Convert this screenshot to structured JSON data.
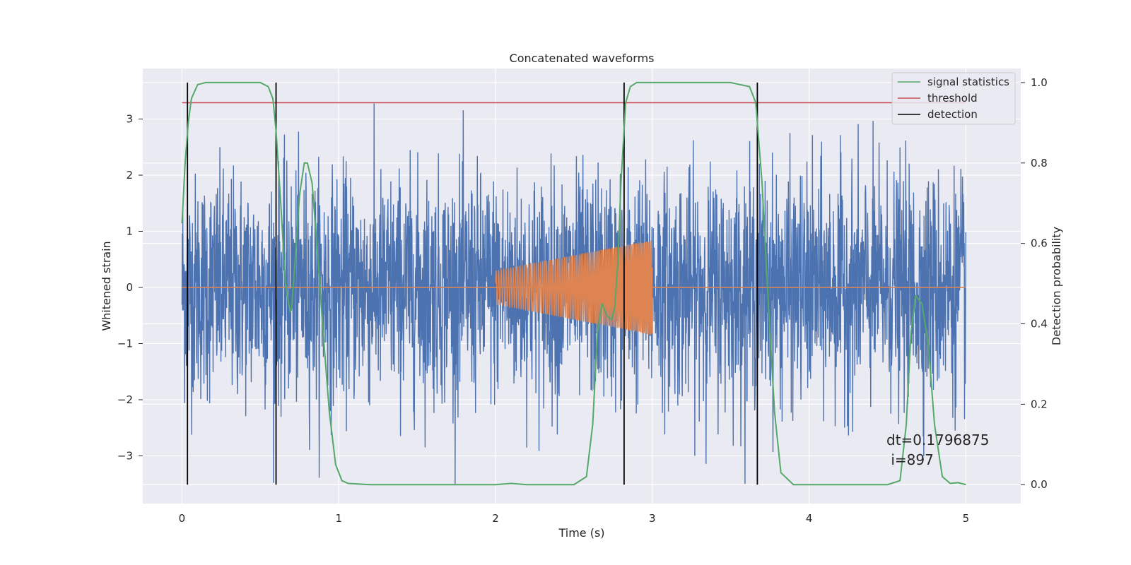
{
  "chart_data": {
    "type": "line",
    "title": "Concatenated waveforms",
    "xlabel": "Time (s)",
    "ylabel": "Whitened strain",
    "y2label": "Detection probability",
    "xlim": [
      -0.25,
      5.35
    ],
    "ylim": [
      -3.85,
      3.9
    ],
    "y2lim": [
      -0.047,
      1.035
    ],
    "grid": true,
    "xticks": [
      0,
      1,
      2,
      3,
      4,
      5
    ],
    "xtick_labels": [
      "0",
      "1",
      "2",
      "3",
      "4",
      "5"
    ],
    "yticks": [
      -3,
      -2,
      -1,
      0,
      1,
      2,
      3
    ],
    "ytick_labels": [
      "−3",
      "−2",
      "−1",
      "0",
      "1",
      "2",
      "3"
    ],
    "y2ticks": [
      0.0,
      0.2,
      0.4,
      0.6,
      0.8,
      1.0
    ],
    "y2tick_labels": [
      "0.0",
      "0.2",
      "0.4",
      "0.6",
      "0.8",
      "1.0"
    ],
    "legend_position": "top-right",
    "series": [
      {
        "name": "",
        "kind": "noise",
        "color": "#4c72b0",
        "x_range": [
          0,
          5
        ],
        "typical_amplitude": 1.0,
        "peak_amplitude": 3.5
      },
      {
        "name": "",
        "kind": "chirp",
        "color": "#dd8452",
        "flat_x": [
          0,
          5
        ],
        "flat_y": 0,
        "chirp_x": [
          2.0,
          3.0
        ],
        "amplitude_start": 0.3,
        "amplitude_end": 0.85,
        "axis": "left"
      },
      {
        "name": "signal statistics",
        "color": "#55a868",
        "axis": "right",
        "x": [
          0.0,
          0.02,
          0.04,
          0.06,
          0.1,
          0.15,
          0.3,
          0.5,
          0.55,
          0.58,
          0.6,
          0.63,
          0.66,
          0.69,
          0.7,
          0.72,
          0.75,
          0.78,
          0.8,
          0.83,
          0.86,
          0.9,
          0.94,
          0.98,
          1.02,
          1.06,
          1.2,
          1.5,
          2.0,
          2.1,
          2.2,
          2.5,
          2.58,
          2.62,
          2.65,
          2.68,
          2.71,
          2.74,
          2.76,
          2.78,
          2.8,
          2.83,
          2.86,
          2.9,
          3.0,
          3.5,
          3.62,
          3.66,
          3.7,
          3.74,
          3.78,
          3.82,
          3.9,
          4.2,
          4.5,
          4.58,
          4.62,
          4.65,
          4.68,
          4.72,
          4.76,
          4.8,
          4.85,
          4.9,
          4.95,
          5.0
        ],
        "y": [
          0.65,
          0.8,
          0.9,
          0.96,
          0.995,
          1.0,
          1.0,
          1.0,
          0.99,
          0.96,
          0.88,
          0.7,
          0.5,
          0.43,
          0.44,
          0.55,
          0.72,
          0.8,
          0.8,
          0.75,
          0.6,
          0.38,
          0.18,
          0.05,
          0.01,
          0.003,
          0.0,
          0.0,
          0.0,
          0.003,
          0.0,
          0.0,
          0.02,
          0.15,
          0.38,
          0.45,
          0.42,
          0.41,
          0.44,
          0.55,
          0.75,
          0.95,
          0.99,
          1.0,
          1.0,
          1.0,
          0.99,
          0.95,
          0.75,
          0.45,
          0.18,
          0.03,
          0.0,
          0.0,
          0.0,
          0.01,
          0.15,
          0.38,
          0.47,
          0.45,
          0.35,
          0.15,
          0.02,
          0.003,
          0.005,
          0.0
        ]
      },
      {
        "name": "threshold",
        "color": "#c44e52",
        "axis": "right",
        "x": [
          0,
          5
        ],
        "y": [
          0.95,
          0.95
        ]
      },
      {
        "name": "detection",
        "color": "#000000",
        "axis": "right",
        "vlines": [
          0.035,
          0.6,
          2.82,
          3.67
        ],
        "ymin": 0,
        "ymax": 1
      }
    ],
    "annotation": {
      "line1": "dt=0.1796875",
      "line2": " i=897",
      "x": 4.52,
      "y2": 0.08
    }
  }
}
